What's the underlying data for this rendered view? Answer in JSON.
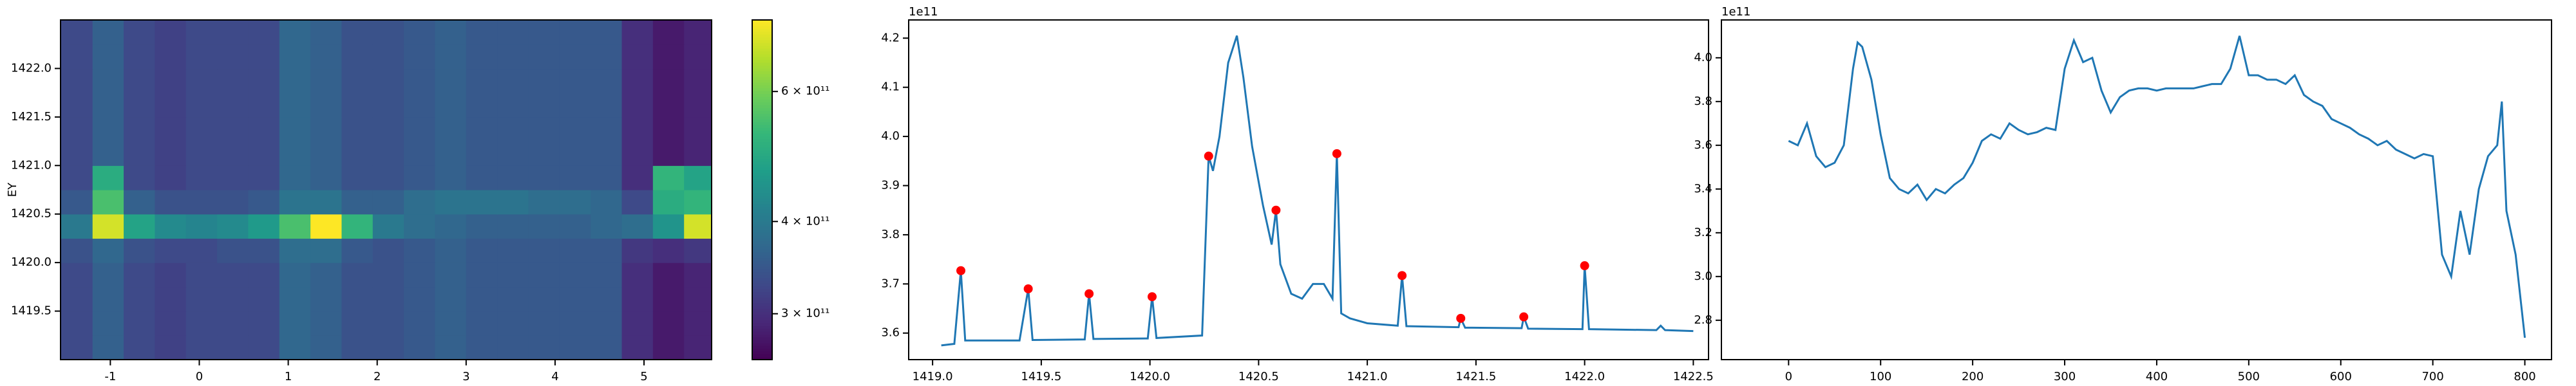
{
  "chart_data": [
    {
      "type": "heatmap",
      "ylabel": "EY",
      "colormap": "viridis",
      "color_scale": "log",
      "xlim": [
        -1.56,
        5.76
      ],
      "ylim": [
        1419,
        1422.5
      ],
      "xticks": [
        -1,
        0,
        1,
        2,
        3,
        4,
        5
      ],
      "yticks": [
        1419.5,
        {
          "value": 1420,
          "label": "1420.0"
        },
        1420.5,
        {
          "value": 1421,
          "label": "1421.0"
        },
        1421.5,
        {
          "value": 1422,
          "label": "1422.0"
        }
      ],
      "xedges": [
        -1.56,
        -1.2,
        -0.85,
        -0.5,
        -0.15,
        0.2,
        0.55,
        0.9,
        1.25,
        1.6,
        1.95,
        2.3,
        2.65,
        3.0,
        3.35,
        3.7,
        4.05,
        4.4,
        4.75,
        5.1,
        5.45,
        5.76
      ],
      "yedges": [
        1419,
        1419.25,
        1419.5,
        1419.75,
        1420,
        1420.25,
        1420.5,
        1420.75,
        1421,
        1421.25,
        1421.5,
        1421.75,
        1422,
        1422.25,
        1422.5
      ],
      "z": [
        [
          330000000000.0,
          360000000000.0,
          330000000000.0,
          320000000000.0,
          330000000000.0,
          330000000000.0,
          330000000000.0,
          370000000000.0,
          360000000000.0,
          340000000000.0,
          340000000000.0,
          350000000000.0,
          360000000000.0,
          350000000000.0,
          350000000000.0,
          350000000000.0,
          350000000000.0,
          350000000000.0,
          300000000000.0,
          280000000000.0,
          290000000000.0
        ],
        [
          330000000000.0,
          360000000000.0,
          330000000000.0,
          320000000000.0,
          330000000000.0,
          330000000000.0,
          330000000000.0,
          370000000000.0,
          360000000000.0,
          340000000000.0,
          340000000000.0,
          350000000000.0,
          360000000000.0,
          350000000000.0,
          350000000000.0,
          350000000000.0,
          350000000000.0,
          350000000000.0,
          300000000000.0,
          280000000000.0,
          290000000000.0
        ],
        [
          330000000000.0,
          360000000000.0,
          330000000000.0,
          320000000000.0,
          330000000000.0,
          330000000000.0,
          330000000000.0,
          370000000000.0,
          360000000000.0,
          340000000000.0,
          340000000000.0,
          350000000000.0,
          360000000000.0,
          350000000000.0,
          350000000000.0,
          350000000000.0,
          350000000000.0,
          350000000000.0,
          300000000000.0,
          280000000000.0,
          290000000000.0
        ],
        [
          330000000000.0,
          360000000000.0,
          330000000000.0,
          320000000000.0,
          330000000000.0,
          330000000000.0,
          330000000000.0,
          370000000000.0,
          360000000000.0,
          340000000000.0,
          340000000000.0,
          350000000000.0,
          360000000000.0,
          350000000000.0,
          350000000000.0,
          350000000000.0,
          350000000000.0,
          350000000000.0,
          300000000000.0,
          280000000000.0,
          290000000000.0
        ],
        [
          340000000000.0,
          370000000000.0,
          340000000000.0,
          330000000000.0,
          330000000000.0,
          340000000000.0,
          340000000000.0,
          380000000000.0,
          380000000000.0,
          350000000000.0,
          340000000000.0,
          350000000000.0,
          360000000000.0,
          350000000000.0,
          350000000000.0,
          350000000000.0,
          350000000000.0,
          350000000000.0,
          310000000000.0,
          300000000000.0,
          310000000000.0
        ],
        [
          400000000000.0,
          700000000000.0,
          480000000000.0,
          430000000000.0,
          420000000000.0,
          430000000000.0,
          460000000000.0,
          550000000000.0,
          750000000000.0,
          520000000000.0,
          400000000000.0,
          380000000000.0,
          370000000000.0,
          360000000000.0,
          360000000000.0,
          360000000000.0,
          360000000000.0,
          370000000000.0,
          380000000000.0,
          450000000000.0,
          700000000000.0
        ],
        [
          350000000000.0,
          550000000000.0,
          360000000000.0,
          340000000000.0,
          340000000000.0,
          340000000000.0,
          350000000000.0,
          390000000000.0,
          390000000000.0,
          360000000000.0,
          360000000000.0,
          380000000000.0,
          390000000000.0,
          390000000000.0,
          390000000000.0,
          380000000000.0,
          380000000000.0,
          370000000000.0,
          330000000000.0,
          500000000000.0,
          520000000000.0
        ],
        [
          330000000000.0,
          500000000000.0,
          330000000000.0,
          320000000000.0,
          330000000000.0,
          330000000000.0,
          330000000000.0,
          370000000000.0,
          360000000000.0,
          340000000000.0,
          340000000000.0,
          350000000000.0,
          360000000000.0,
          350000000000.0,
          350000000000.0,
          350000000000.0,
          350000000000.0,
          350000000000.0,
          300000000000.0,
          520000000000.0,
          480000000000.0
        ],
        [
          330000000000.0,
          360000000000.0,
          330000000000.0,
          320000000000.0,
          330000000000.0,
          330000000000.0,
          330000000000.0,
          370000000000.0,
          360000000000.0,
          340000000000.0,
          340000000000.0,
          350000000000.0,
          360000000000.0,
          350000000000.0,
          350000000000.0,
          350000000000.0,
          350000000000.0,
          350000000000.0,
          300000000000.0,
          280000000000.0,
          290000000000.0
        ],
        [
          330000000000.0,
          360000000000.0,
          330000000000.0,
          320000000000.0,
          330000000000.0,
          330000000000.0,
          330000000000.0,
          370000000000.0,
          360000000000.0,
          340000000000.0,
          340000000000.0,
          350000000000.0,
          360000000000.0,
          350000000000.0,
          350000000000.0,
          350000000000.0,
          350000000000.0,
          350000000000.0,
          300000000000.0,
          280000000000.0,
          290000000000.0
        ],
        [
          330000000000.0,
          360000000000.0,
          330000000000.0,
          320000000000.0,
          330000000000.0,
          330000000000.0,
          330000000000.0,
          370000000000.0,
          360000000000.0,
          340000000000.0,
          340000000000.0,
          350000000000.0,
          360000000000.0,
          350000000000.0,
          350000000000.0,
          350000000000.0,
          350000000000.0,
          350000000000.0,
          300000000000.0,
          280000000000.0,
          290000000000.0
        ],
        [
          330000000000.0,
          360000000000.0,
          330000000000.0,
          320000000000.0,
          330000000000.0,
          330000000000.0,
          330000000000.0,
          370000000000.0,
          360000000000.0,
          340000000000.0,
          340000000000.0,
          350000000000.0,
          360000000000.0,
          350000000000.0,
          350000000000.0,
          350000000000.0,
          350000000000.0,
          350000000000.0,
          300000000000.0,
          280000000000.0,
          290000000000.0
        ],
        [
          330000000000.0,
          360000000000.0,
          330000000000.0,
          320000000000.0,
          330000000000.0,
          330000000000.0,
          330000000000.0,
          370000000000.0,
          360000000000.0,
          340000000000.0,
          340000000000.0,
          350000000000.0,
          360000000000.0,
          350000000000.0,
          350000000000.0,
          350000000000.0,
          350000000000.0,
          350000000000.0,
          300000000000.0,
          280000000000.0,
          290000000000.0
        ],
        [
          330000000000.0,
          360000000000.0,
          330000000000.0,
          320000000000.0,
          330000000000.0,
          330000000000.0,
          330000000000.0,
          370000000000.0,
          360000000000.0,
          340000000000.0,
          340000000000.0,
          350000000000.0,
          360000000000.0,
          350000000000.0,
          350000000000.0,
          350000000000.0,
          350000000000.0,
          350000000000.0,
          300000000000.0,
          280000000000.0,
          290000000000.0
        ]
      ],
      "clim": [
        260000000000.0,
        750000000000.0
      ],
      "cticks": [
        {
          "value": 300000000000.0,
          "label": "3 × 10¹¹"
        },
        {
          "value": 400000000000.0,
          "label": "4 × 10¹¹"
        },
        {
          "value": 600000000000.0,
          "label": "6 × 10¹¹"
        }
      ]
    },
    {
      "type": "line",
      "offset_label": "1e11",
      "xlim": [
        1418.89,
        1422.57
      ],
      "ylim": [
        3.546,
        4.237
      ],
      "xticks": [
        {
          "value": 1419,
          "label": "1419.0"
        },
        1419.5,
        {
          "value": 1420,
          "label": "1420.0"
        },
        1420.5,
        {
          "value": 1421,
          "label": "1421.0"
        },
        1421.5,
        {
          "value": 1422,
          "label": "1422.0"
        },
        1422.5
      ],
      "yticks": [
        3.6,
        3.7,
        3.8,
        3.9,
        {
          "value": 4,
          "label": "4.0"
        },
        4.1,
        4.2
      ],
      "series": [
        {
          "color": "#1f77b4",
          "linestyle": "solid",
          "x": [
            1419.04,
            1419.1,
            1419.13,
            1419.15,
            1419.4,
            1419.44,
            1419.46,
            1419.7,
            1419.72,
            1419.74,
            1419.99,
            1420.01,
            1420.03,
            1420.24,
            1420.27,
            1420.29,
            1420.32,
            1420.36,
            1420.4,
            1420.43,
            1420.47,
            1420.52,
            1420.56,
            1420.58,
            1420.6,
            1420.65,
            1420.7,
            1420.75,
            1420.8,
            1420.84,
            1420.86,
            1420.88,
            1420.92,
            1421.0,
            1421.14,
            1421.16,
            1421.18,
            1421.42,
            1421.43,
            1421.45,
            1421.71,
            1421.72,
            1421.74,
            1421.99,
            1422.0,
            1422.02,
            1422.33,
            1422.35,
            1422.37,
            1422.5
          ],
          "values": [
            3.575,
            3.578,
            3.727,
            3.585,
            3.585,
            3.69,
            3.586,
            3.587,
            3.68,
            3.588,
            3.589,
            3.674,
            3.59,
            3.595,
            3.96,
            3.93,
            4.0,
            4.15,
            4.205,
            4.12,
            3.98,
            3.86,
            3.78,
            3.85,
            3.74,
            3.68,
            3.67,
            3.7,
            3.7,
            3.67,
            3.965,
            3.64,
            3.63,
            3.62,
            3.615,
            3.717,
            3.614,
            3.612,
            3.63,
            3.611,
            3.61,
            3.633,
            3.609,
            3.608,
            3.737,
            3.608,
            3.606,
            3.615,
            3.606,
            3.604
          ]
        },
        {
          "color": "#ff0000",
          "linestyle": "none",
          "marker": "o",
          "x": [
            1419.13,
            1419.44,
            1419.72,
            1420.01,
            1420.27,
            1420.58,
            1420.86,
            1421.16,
            1421.43,
            1421.72,
            1422.0
          ],
          "values": [
            3.727,
            3.69,
            3.68,
            3.674,
            3.96,
            3.85,
            3.965,
            3.717,
            3.63,
            3.633,
            3.737
          ]
        }
      ]
    },
    {
      "type": "line",
      "offset_label": "1e11",
      "xlim": [
        -73,
        829
      ],
      "ylim": [
        2.62,
        4.173
      ],
      "xticks": [
        0,
        100,
        200,
        300,
        400,
        500,
        600,
        700,
        800
      ],
      "yticks": [
        2.8,
        {
          "value": 3,
          "label": "3.0"
        },
        3.2,
        3.4,
        3.6,
        3.8,
        {
          "value": 4,
          "label": "4.0"
        }
      ],
      "series": [
        {
          "color": "#1f77b4",
          "linestyle": "solid",
          "x": [
            0,
            10,
            20,
            30,
            40,
            50,
            60,
            70,
            75,
            80,
            90,
            100,
            110,
            120,
            130,
            140,
            150,
            160,
            170,
            180,
            190,
            200,
            210,
            220,
            230,
            240,
            250,
            260,
            270,
            280,
            290,
            300,
            310,
            320,
            330,
            340,
            350,
            360,
            370,
            380,
            390,
            400,
            410,
            420,
            430,
            440,
            450,
            460,
            470,
            480,
            490,
            500,
            510,
            520,
            530,
            540,
            550,
            560,
            570,
            580,
            590,
            600,
            610,
            620,
            630,
            640,
            650,
            660,
            670,
            680,
            690,
            700,
            710,
            720,
            730,
            740,
            750,
            760,
            770,
            775,
            780,
            790,
            800
          ],
          "values": [
            3.62,
            3.6,
            3.7,
            3.55,
            3.5,
            3.52,
            3.6,
            3.95,
            4.07,
            4.05,
            3.9,
            3.65,
            3.45,
            3.4,
            3.38,
            3.42,
            3.35,
            3.4,
            3.38,
            3.42,
            3.45,
            3.52,
            3.62,
            3.65,
            3.63,
            3.7,
            3.67,
            3.65,
            3.66,
            3.68,
            3.67,
            3.95,
            4.08,
            3.98,
            4.0,
            3.85,
            3.75,
            3.82,
            3.85,
            3.86,
            3.86,
            3.85,
            3.86,
            3.86,
            3.86,
            3.86,
            3.87,
            3.88,
            3.88,
            3.95,
            4.1,
            3.92,
            3.92,
            3.9,
            3.9,
            3.88,
            3.92,
            3.83,
            3.8,
            3.78,
            3.72,
            3.7,
            3.68,
            3.65,
            3.63,
            3.6,
            3.62,
            3.58,
            3.56,
            3.54,
            3.56,
            3.55,
            3.1,
            3.0,
            3.3,
            3.1,
            3.4,
            3.55,
            3.6,
            3.8,
            3.3,
            3.1,
            2.72
          ]
        }
      ]
    }
  ]
}
